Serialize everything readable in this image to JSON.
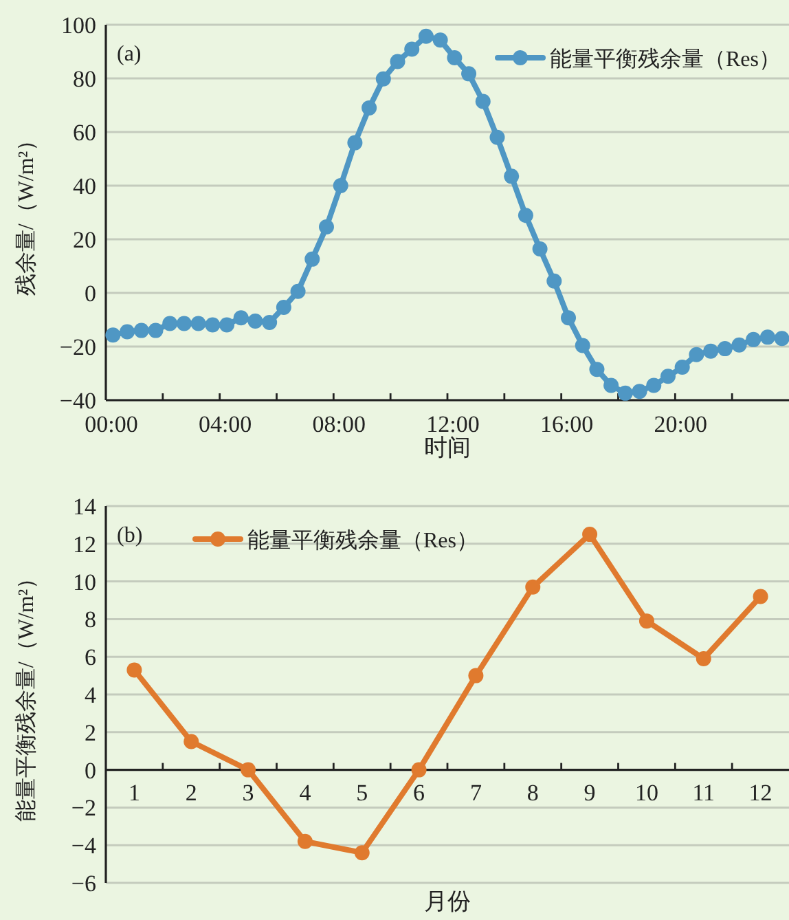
{
  "chart_data": [
    {
      "type": "line",
      "annotations": [
        "(a)"
      ],
      "xlabel": "时间",
      "ylabel": "残余量/（W/m²）",
      "x": [
        0.25,
        0.75,
        1.25,
        1.75,
        2.25,
        2.75,
        3.25,
        3.75,
        4.25,
        4.75,
        5.25,
        5.75,
        6.25,
        6.75,
        7.25,
        7.75,
        8.25,
        8.75,
        9.25,
        9.75,
        10.25,
        10.75,
        11.25,
        11.75,
        12.25,
        12.75,
        13.25,
        13.75,
        14.25,
        14.75,
        15.25,
        15.75,
        16.25,
        16.75,
        17.25,
        17.75,
        18.25,
        18.75,
        19.25,
        19.75,
        20.25,
        20.75,
        21.25,
        21.75,
        22.25,
        22.75,
        23.25,
        23.75
      ],
      "series": [
        {
          "name": "能量平衡残余量（Res）",
          "color": "#4f97c4",
          "values": [
            -15.7,
            -14.5,
            -14,
            -14,
            -11.4,
            -11.4,
            -11.4,
            -11.9,
            -11.9,
            -9.3,
            -10.5,
            -11,
            -5.4,
            0.6,
            12.6,
            24.6,
            40,
            56,
            69,
            79.8,
            86.3,
            90.9,
            95.7,
            94.3,
            87.7,
            81.7,
            71.4,
            58,
            43.5,
            28.9,
            16.4,
            4.4,
            -9.3,
            -19.6,
            -28.5,
            -34.5,
            -37.4,
            -36.7,
            -34.5,
            -31.1,
            -27.7,
            -23,
            -21.7,
            -20.8,
            -19.4,
            -17.4,
            -16.5,
            -17
          ]
        }
      ],
      "xlim": [
        0,
        24
      ],
      "xticks": [
        {
          "value": 0,
          "label": "00:00"
        },
        {
          "value": 2,
          "label": null
        },
        {
          "value": 4,
          "label": "04:00"
        },
        {
          "value": 6,
          "label": null
        },
        {
          "value": 8,
          "label": "08:00"
        },
        {
          "value": 10,
          "label": null
        },
        {
          "value": 12,
          "label": "12:00"
        },
        {
          "value": 14,
          "label": null
        },
        {
          "value": 16,
          "label": "16:00"
        },
        {
          "value": 18,
          "label": null
        },
        {
          "value": 20,
          "label": "20:00"
        },
        {
          "value": 22,
          "label": null
        }
      ],
      "ylim": [
        -40,
        100
      ],
      "yticks": [
        -40,
        -20,
        0,
        20,
        40,
        60,
        80,
        100
      ],
      "grid": "y",
      "legend": "top right",
      "marker": "circle",
      "line_style": "solid"
    },
    {
      "type": "line",
      "annotations": [
        "(b)"
      ],
      "xlabel": "月份",
      "ylabel": "能量平衡残余量/（W/m²）",
      "categories": [
        "1",
        "2",
        "3",
        "4",
        "5",
        "6",
        "7",
        "8",
        "9",
        "10",
        "11",
        "12"
      ],
      "series": [
        {
          "name": "能量平衡残余量（Res）",
          "color": "#e07a2e",
          "values": [
            5.3,
            1.5,
            0,
            -3.8,
            -4.4,
            0,
            5.0,
            9.7,
            12.5,
            7.9,
            5.9,
            9.2
          ]
        }
      ],
      "ylim": [
        -6,
        14
      ],
      "yticks": [
        -6,
        -4,
        -2,
        0,
        2,
        4,
        6,
        8,
        10,
        12,
        14
      ],
      "grid": "y",
      "legend": "top left",
      "marker": "circle",
      "line_style": "solid"
    }
  ]
}
